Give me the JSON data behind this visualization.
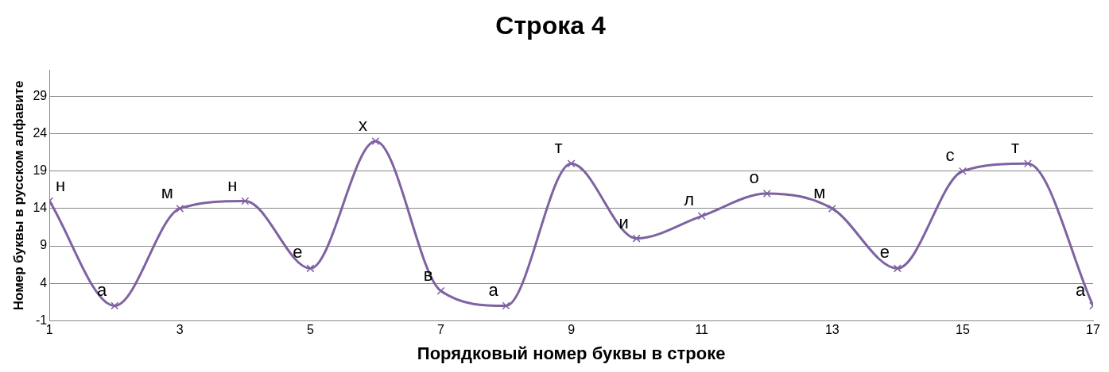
{
  "chart_data": {
    "type": "line",
    "title": "Строка 4",
    "xlabel": "Порядковый номер буквы в строке",
    "ylabel": "Номер буквы в русском алфавите",
    "x": [
      1,
      2,
      3,
      4,
      5,
      6,
      7,
      8,
      9,
      10,
      11,
      12,
      13,
      14,
      15,
      16,
      17
    ],
    "series": [
      {
        "color": "#7e62a1",
        "values": [
          15,
          1,
          14,
          15,
          6,
          23,
          3,
          1,
          20,
          10,
          13,
          16,
          14,
          6,
          19,
          20,
          1
        ],
        "value_labels": [
          "н",
          "а",
          "м",
          "н",
          "е",
          "х",
          "в",
          "а",
          "т",
          "и",
          "л",
          "о",
          "м",
          "е",
          "с",
          "т",
          "а"
        ]
      }
    ],
    "xlim": [
      1,
      17
    ],
    "xticks": [
      1,
      3,
      5,
      7,
      9,
      11,
      13,
      15,
      17
    ],
    "ylim": [
      -1,
      32.5
    ],
    "yticks": [
      -1,
      4,
      9,
      14,
      19,
      24,
      29
    ],
    "grid": "y",
    "legend": false,
    "marker": "cross",
    "line_style": "solid"
  }
}
